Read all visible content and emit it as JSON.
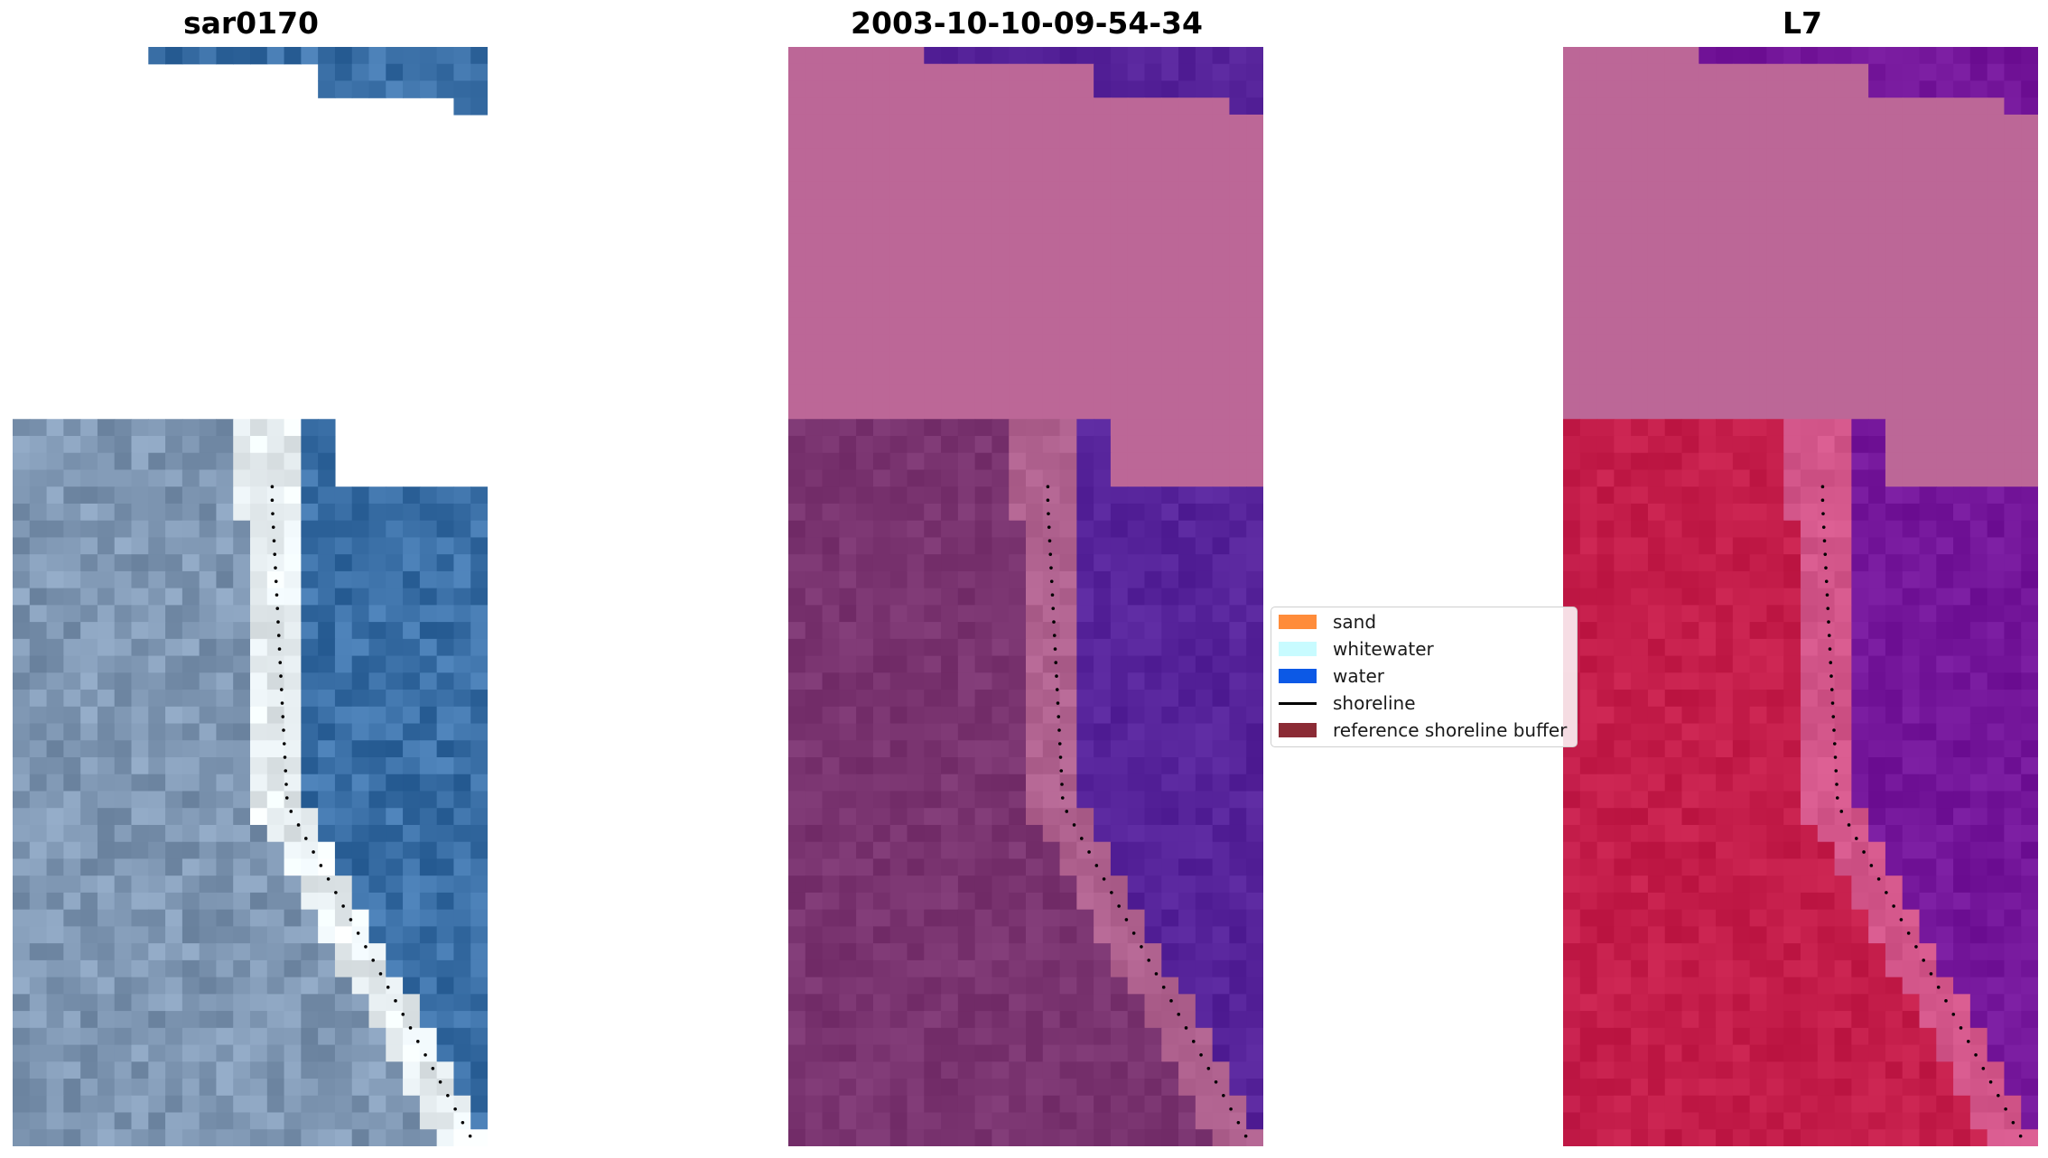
{
  "figure": {
    "panels": [
      {
        "id": "rgb",
        "title": "sar0170"
      },
      {
        "id": "classified",
        "title": "2003-10-10-09-54-34"
      },
      {
        "id": "index",
        "title": "L7"
      }
    ]
  },
  "legend": {
    "items": [
      {
        "label": "sand",
        "kind": "patch",
        "color": "#ff8c3a"
      },
      {
        "label": "whitewater",
        "kind": "patch",
        "color": "#c8fbff"
      },
      {
        "label": "water",
        "kind": "patch",
        "color": "#0c59e6"
      },
      {
        "label": "shoreline",
        "kind": "line",
        "color": "#000000"
      },
      {
        "label": "reference shoreline buffer",
        "kind": "patch",
        "color": "#8b2b35"
      }
    ]
  },
  "colors": {
    "rgb_water": "#3a6fa6",
    "rgb_land": "#7f97b3",
    "rgb_surf": "#e8eff2",
    "class_nodata": "#bc6797",
    "class_water": "#56239a",
    "class_land": "#7a3470",
    "class_buffer_edge": "#b0628f",
    "index_nodata": "#bc6797",
    "index_water": "#74169a",
    "index_land": "#c41d4a",
    "index_edge": "#d3568a",
    "shoreline_dots": "#000000"
  }
}
